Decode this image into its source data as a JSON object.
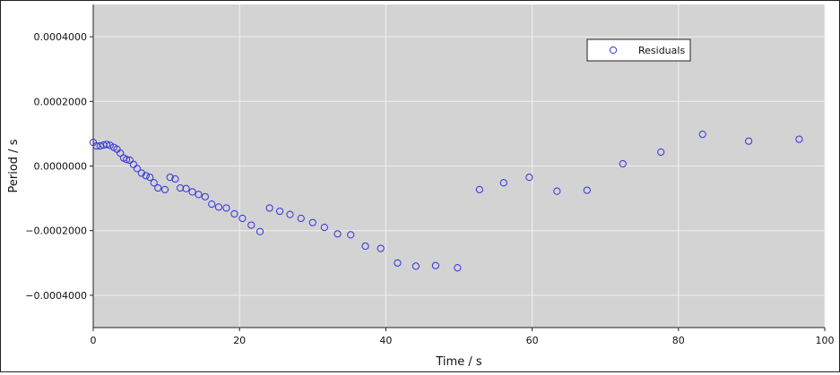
{
  "chart_data": {
    "type": "scatter",
    "title": "",
    "xlabel": "Time / s",
    "ylabel": "Period / s",
    "xlim": [
      0,
      100
    ],
    "ylim": [
      -0.0005,
      0.0005
    ],
    "x_ticks": [
      0,
      20,
      40,
      60,
      80,
      100
    ],
    "x_tick_labels": [
      "0",
      "20",
      "40",
      "60",
      "80",
      "100"
    ],
    "y_ticks": [
      0.0004,
      0.0002,
      0.0,
      -0.0002,
      -0.0004
    ],
    "y_tick_labels": [
      "0.0004000",
      "0.0002000",
      "0.0000000",
      "−0.0002000",
      "−0.0004000"
    ],
    "grid": true,
    "legend_position": "top-right",
    "plot_background": "#d3d3d3",
    "grid_color": "#f0f0f0",
    "series": [
      {
        "name": "Residuals",
        "marker": "hollow-circle",
        "color": "#3333dd",
        "points": [
          [
            0.0,
            7.3e-05
          ],
          [
            0.45,
            6.2e-05
          ],
          [
            0.95,
            6.2e-05
          ],
          [
            1.4,
            6.5e-05
          ],
          [
            1.85,
            6.7e-05
          ],
          [
            2.3,
            6.4e-05
          ],
          [
            2.8,
            5.8e-05
          ],
          [
            3.25,
            5.2e-05
          ],
          [
            3.7,
            4e-05
          ],
          [
            4.15,
            2.5e-05
          ],
          [
            4.55,
            2e-05
          ],
          [
            5.0,
            1.8e-05
          ],
          [
            5.5,
            5e-06
          ],
          [
            6.0,
            -8e-06
          ],
          [
            6.6,
            -2.2e-05
          ],
          [
            7.2,
            -3e-05
          ],
          [
            7.75,
            -3.5e-05
          ],
          [
            8.3,
            -5.2e-05
          ],
          [
            8.85,
            -6.8e-05
          ],
          [
            9.8,
            -7.3e-05
          ],
          [
            10.5,
            -3.5e-05
          ],
          [
            11.2,
            -4e-05
          ],
          [
            11.9,
            -6.8e-05
          ],
          [
            12.7,
            -7e-05
          ],
          [
            13.55,
            -8e-05
          ],
          [
            14.4,
            -8.8e-05
          ],
          [
            15.3,
            -9.5e-05
          ],
          [
            16.2,
            -0.000118
          ],
          [
            17.15,
            -0.000127
          ],
          [
            18.2,
            -0.00013
          ],
          [
            19.3,
            -0.000148
          ],
          [
            20.4,
            -0.000162
          ],
          [
            21.6,
            -0.000183
          ],
          [
            22.8,
            -0.000203
          ],
          [
            24.1,
            -0.00013
          ],
          [
            25.5,
            -0.00014
          ],
          [
            26.9,
            -0.00015
          ],
          [
            28.4,
            -0.000162
          ],
          [
            30.0,
            -0.000175
          ],
          [
            31.6,
            -0.00019
          ],
          [
            33.4,
            -0.00021
          ],
          [
            35.2,
            -0.000213
          ],
          [
            37.2,
            -0.000248
          ],
          [
            39.3,
            -0.000255
          ],
          [
            41.6,
            -0.0003
          ],
          [
            44.1,
            -0.00031
          ],
          [
            46.8,
            -0.000308
          ],
          [
            49.8,
            -0.000315
          ],
          [
            52.8,
            -7.3e-05
          ],
          [
            56.1,
            -5.2e-05
          ],
          [
            59.6,
            -3.5e-05
          ],
          [
            63.4,
            -7.8e-05
          ],
          [
            67.5,
            -7.5e-05
          ],
          [
            72.4,
            7e-06
          ],
          [
            77.6,
            4.3e-05
          ],
          [
            83.3,
            9.8e-05
          ],
          [
            89.6,
            7.7e-05
          ],
          [
            96.5,
            8.3e-05
          ]
        ]
      }
    ]
  }
}
